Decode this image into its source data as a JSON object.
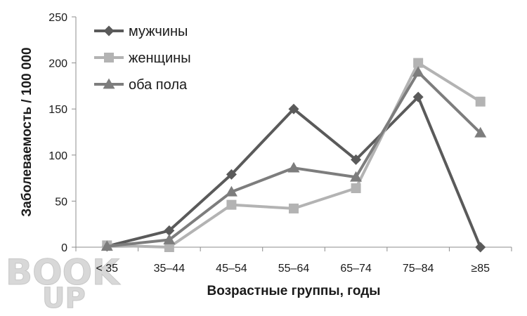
{
  "chart_data": {
    "type": "line",
    "categories": [
      "< 35",
      "35–44",
      "45–54",
      "55–64",
      "65–74",
      "75–84",
      "≥85"
    ],
    "series": [
      {
        "name": "мужчины",
        "values": [
          1,
          18,
          79,
          150,
          95,
          163,
          0
        ],
        "color": "#5a5a5a",
        "marker": "diamond"
      },
      {
        "name": "женщины",
        "values": [
          2,
          0,
          46,
          42,
          64,
          200,
          158
        ],
        "color": "#b3b3b3",
        "marker": "square"
      },
      {
        "name": "оба пола",
        "values": [
          1,
          8,
          60,
          86,
          76,
          190,
          124
        ],
        "color": "#7d7d7d",
        "marker": "triangle"
      }
    ],
    "xlabel": "Возрастные группы, годы",
    "ylabel": "Заболеваемость / 100 000",
    "ylim": [
      0,
      250
    ],
    "yticks": [
      0,
      50,
      100,
      150,
      200,
      250
    ],
    "grid": false,
    "legend_position": "top-left"
  },
  "watermark": {
    "text_top": "BOOK",
    "text_bottom": "UP"
  }
}
